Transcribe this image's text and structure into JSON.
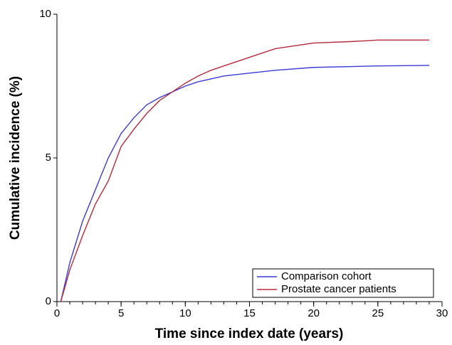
{
  "chart_data": {
    "type": "line",
    "xlabel": "Time since index date (years)",
    "ylabel": "Cumulative incidence (%)",
    "x": [
      0.3,
      1,
      2,
      3,
      4,
      5,
      6,
      7,
      8,
      9,
      10,
      11,
      12,
      13,
      15,
      17,
      20,
      23,
      25,
      29
    ],
    "series": [
      {
        "name": "Comparison cohort",
        "color": "#3b3bd6",
        "values": [
          0,
          1.35,
          2.8,
          3.9,
          5.0,
          5.85,
          6.4,
          6.85,
          7.1,
          7.3,
          7.5,
          7.65,
          7.75,
          7.85,
          7.95,
          8.05,
          8.15,
          8.18,
          8.2,
          8.22
        ]
      },
      {
        "name": "Prostate cancer patients",
        "color": "#b52a3a",
        "values": [
          0,
          1.1,
          2.3,
          3.4,
          4.2,
          5.4,
          6.0,
          6.55,
          7.0,
          7.3,
          7.6,
          7.85,
          8.05,
          8.2,
          8.5,
          8.8,
          9.0,
          9.05,
          9.1,
          9.1
        ]
      }
    ],
    "xlim": [
      0,
      30
    ],
    "xticks": [
      0,
      5,
      10,
      15,
      20,
      25,
      30
    ],
    "ylim": [
      0,
      10
    ],
    "yticks": [
      0,
      5,
      10
    ],
    "legend": "lower right"
  }
}
